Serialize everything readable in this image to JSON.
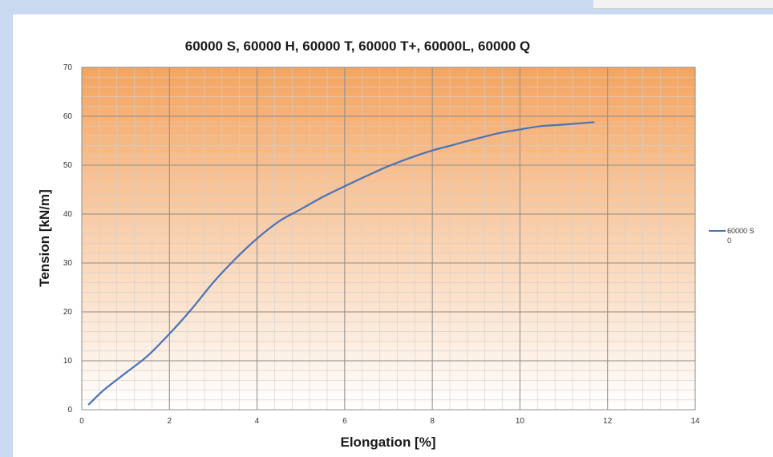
{
  "chart_data": {
    "type": "line",
    "title": "60000 S, 60000 H, 60000 T, 60000 T+, 60000L, 60000 Q",
    "xlabel": "Elongation [%]",
    "ylabel": "Tension [kN/m]",
    "xlim": [
      0,
      14
    ],
    "ylim": [
      0,
      70
    ],
    "x_ticks": [
      "0",
      "2",
      "4",
      "6",
      "8",
      "10",
      "12",
      "14"
    ],
    "y_ticks": [
      "0",
      "10",
      "20",
      "30",
      "40",
      "50",
      "60",
      "70"
    ],
    "grid": true,
    "legend_position": "right",
    "background_gradient": [
      "#f4a460",
      "#ffffff"
    ],
    "series": [
      {
        "name": "60000 S",
        "legend_sublabel": "0",
        "color": "#4a72b8",
        "x": [
          0.15,
          0.5,
          1.0,
          1.5,
          2.0,
          2.5,
          3.0,
          3.5,
          4.0,
          4.5,
          5.0,
          5.5,
          6.0,
          6.5,
          7.0,
          7.5,
          8.0,
          8.5,
          9.0,
          9.5,
          10.0,
          10.5,
          11.0,
          11.7
        ],
        "y": [
          1.0,
          4.0,
          7.5,
          11.0,
          15.5,
          20.5,
          26.0,
          30.8,
          35.0,
          38.5,
          41.0,
          43.5,
          45.7,
          47.8,
          49.8,
          51.5,
          53.0,
          54.2,
          55.4,
          56.5,
          57.3,
          58.0,
          58.3,
          58.8
        ]
      }
    ]
  }
}
